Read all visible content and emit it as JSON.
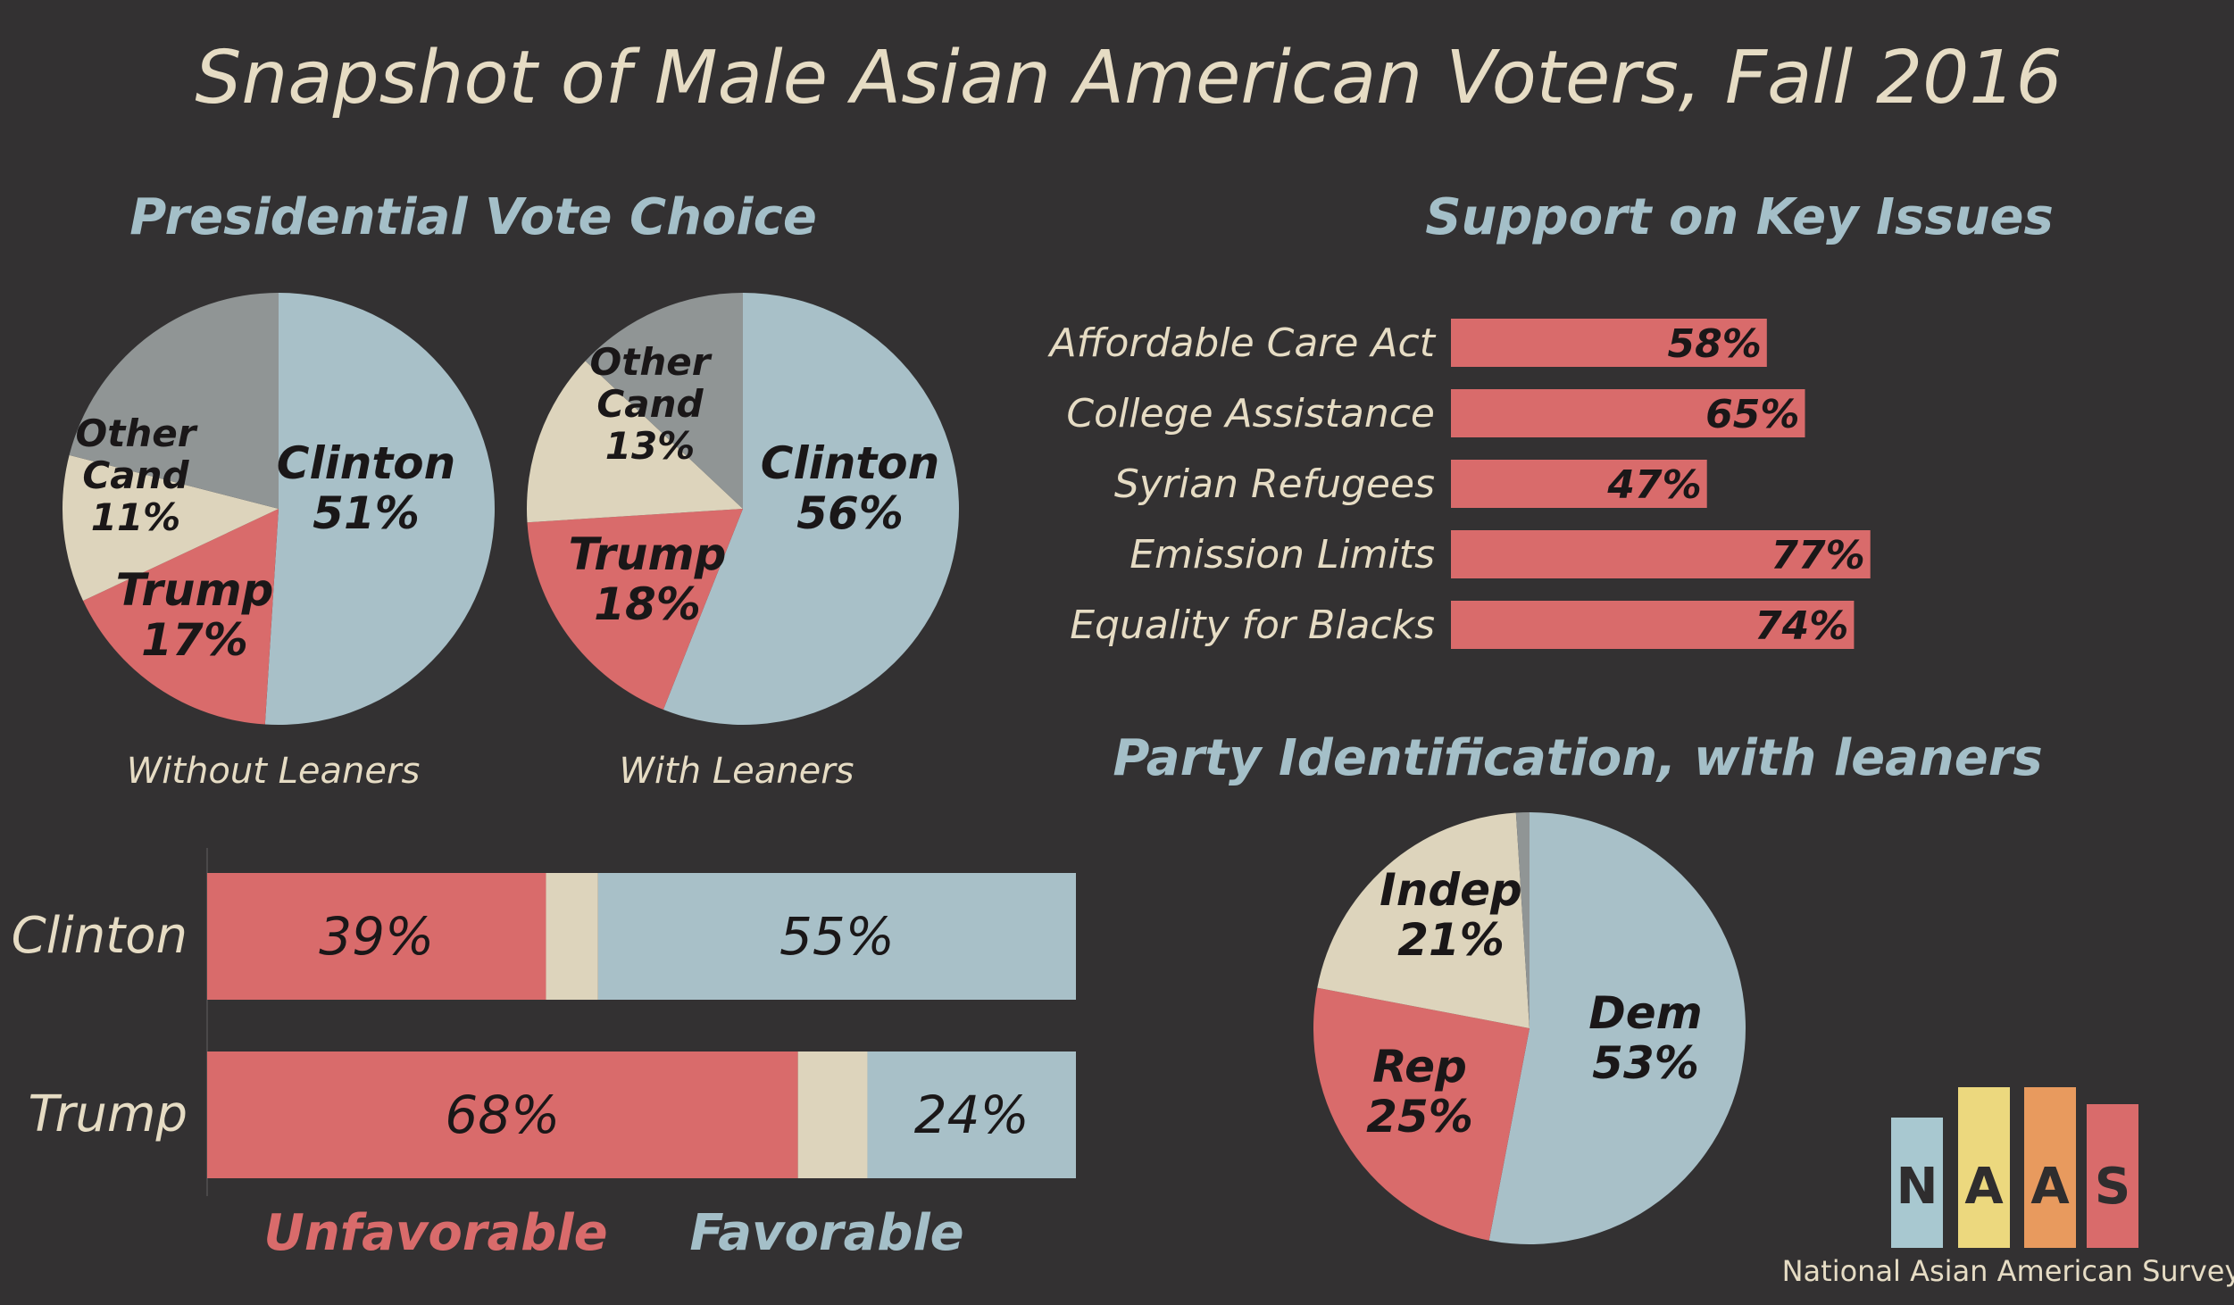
{
  "title": "Snapshot of Male Asian American Voters, Fall 2016",
  "colors": {
    "background": "#333132",
    "clinton_blue": "#a8c0c8",
    "trump_red": "#d96b6b",
    "other_beige": "#ddd4bc",
    "gray": "#909595",
    "heading_blue": "#a4bfc8",
    "cream_text": "#e6dcc4",
    "dark_text": "#1a1718"
  },
  "vote_choice": {
    "heading": "Presidential Vote Choice",
    "pies": [
      {
        "caption": "Without Leaners",
        "slices": [
          {
            "key": "clinton",
            "name": "Clinton",
            "value": 51,
            "label": "51%",
            "color": "#a8c0c8"
          },
          {
            "key": "trump",
            "name": "Trump",
            "value": 17,
            "label": "17%",
            "color": "#d96b6b"
          },
          {
            "key": "other",
            "name": "Other\nCand",
            "value": 11,
            "label": "11%",
            "color": "#ddd4bc"
          },
          {
            "key": "none",
            "name": "",
            "value": 21,
            "label": "",
            "color": "#909595"
          }
        ]
      },
      {
        "caption": "With Leaners",
        "slices": [
          {
            "key": "clinton",
            "name": "Clinton",
            "value": 56,
            "label": "56%",
            "color": "#a8c0c8"
          },
          {
            "key": "trump",
            "name": "Trump",
            "value": 18,
            "label": "18%",
            "color": "#d96b6b"
          },
          {
            "key": "other",
            "name": "Other\nCand",
            "value": 13,
            "label": "13%",
            "color": "#ddd4bc"
          },
          {
            "key": "none",
            "name": "",
            "value": 13,
            "label": "",
            "color": "#909595"
          }
        ]
      }
    ]
  },
  "favorability": {
    "legend_unfavorable": "Unfavorable",
    "legend_favorable": "Favorable",
    "rows": [
      {
        "name": "Clinton",
        "unfavorable": 39,
        "unfavorable_label": "39%",
        "favorable": 55,
        "favorable_label": "55%"
      },
      {
        "name": "Trump",
        "unfavorable": 68,
        "unfavorable_label": "68%",
        "favorable": 24,
        "favorable_label": "24%"
      }
    ]
  },
  "issues": {
    "heading": "Support on Key Issues",
    "items": [
      {
        "name": "Affordable Care Act",
        "value": 58,
        "label": "58%"
      },
      {
        "name": "College Assistance",
        "value": 65,
        "label": "65%"
      },
      {
        "name": "Syrian Refugees",
        "value": 47,
        "label": "47%"
      },
      {
        "name": "Emission Limits",
        "value": 77,
        "label": "77%"
      },
      {
        "name": "Equality for Blacks",
        "value": 74,
        "label": "74%"
      }
    ]
  },
  "party_id": {
    "heading": "Party Identification, with leaners",
    "slices": [
      {
        "key": "dem",
        "name": "Dem",
        "value": 53,
        "label": "53%",
        "color": "#a8c0c8"
      },
      {
        "key": "rep",
        "name": "Rep",
        "value": 25,
        "label": "25%",
        "color": "#d96b6b"
      },
      {
        "key": "indep",
        "name": "Indep",
        "value": 21,
        "label": "21%",
        "color": "#ddd4bc"
      },
      {
        "key": "other",
        "name": "",
        "value": 1,
        "label": "",
        "color": "#909595"
      }
    ]
  },
  "logo": {
    "letters": [
      "N",
      "A",
      "A",
      "S"
    ],
    "colors": [
      "#a8c8d0",
      "#ecd87e",
      "#e89a5e",
      "#d96b6b"
    ],
    "tagline": "National Asian American Survey"
  },
  "chart_data": [
    {
      "type": "pie",
      "title": "Presidential Vote Choice",
      "subtitle": "Without Leaners",
      "categories": [
        "Clinton",
        "Trump",
        "Other Cand",
        ""
      ],
      "values": [
        51,
        17,
        11,
        21
      ]
    },
    {
      "type": "pie",
      "title": "Presidential Vote Choice",
      "subtitle": "With Leaners",
      "categories": [
        "Clinton",
        "Trump",
        "Other Cand",
        ""
      ],
      "values": [
        56,
        18,
        13,
        13
      ]
    },
    {
      "type": "bar",
      "title": "",
      "orientation": "horizontal-stacked",
      "categories": [
        "Clinton",
        "Trump"
      ],
      "series": [
        {
          "name": "Unfavorable",
          "values": [
            39,
            68
          ]
        },
        {
          "values": [
            6,
            8
          ]
        },
        {
          "name": "Favorable",
          "values": [
            55,
            24
          ]
        }
      ],
      "xlim": [
        0,
        100
      ]
    },
    {
      "type": "bar",
      "title": "Support on Key Issues",
      "orientation": "horizontal",
      "categories": [
        "Affordable Care Act",
        "College Assistance",
        "Syrian Refugees",
        "Emission Limits",
        "Equality for Blacks"
      ],
      "values": [
        58,
        65,
        47,
        77,
        74
      ],
      "xlim": [
        0,
        100
      ]
    },
    {
      "type": "pie",
      "title": "Party Identification, with leaners",
      "categories": [
        "Dem",
        "Rep",
        "Indep",
        ""
      ],
      "values": [
        53,
        25,
        21,
        1
      ]
    }
  ]
}
